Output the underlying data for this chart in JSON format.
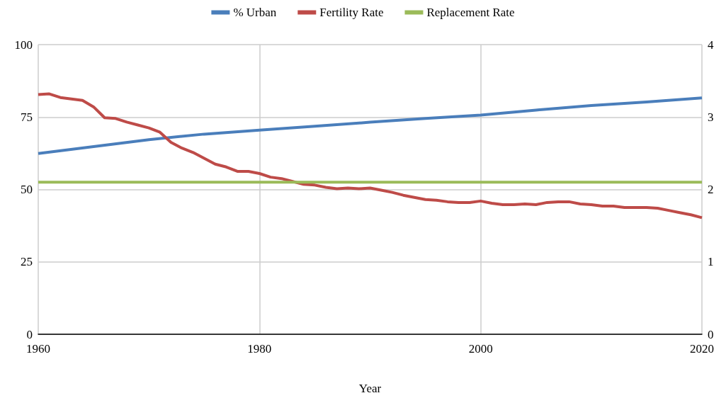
{
  "chart_data": {
    "type": "line",
    "xlabel": "Year",
    "xlim": [
      1960,
      2020
    ],
    "xticks": [
      1960,
      1980,
      2000,
      2020
    ],
    "ylim": [
      0,
      100
    ],
    "yticks": [
      0,
      25,
      50,
      75,
      100
    ],
    "y2lim": [
      0,
      4
    ],
    "y2ticks": [
      0,
      1,
      2,
      3,
      4
    ],
    "grid": true,
    "legend": "top",
    "marker": "none",
    "line_style": "solid",
    "series": [
      {
        "name": "% Urban",
        "color": "#4a7ebb",
        "x": [
          1960,
          1965,
          1970,
          1975,
          1980,
          1985,
          1990,
          1995,
          2000,
          2005,
          2010,
          2015,
          2020
        ],
        "values": [
          62.4,
          64.8,
          67.2,
          69.1,
          70.5,
          71.8,
          73.2,
          74.5,
          75.7,
          77.4,
          79,
          80.2,
          81.6
        ]
      },
      {
        "name": "Fertility Rate",
        "color": "#be4b48",
        "axis": "y2",
        "x": [
          1960,
          1961,
          1962,
          1963,
          1964,
          1965,
          1966,
          1967,
          1968,
          1969,
          1970,
          1971,
          1972,
          1973,
          1974,
          1975,
          1976,
          1977,
          1978,
          1979,
          1980,
          1981,
          1982,
          1983,
          1984,
          1985,
          1986,
          1987,
          1988,
          1989,
          1990,
          1991,
          1992,
          1993,
          1994,
          1995,
          1996,
          1997,
          1998,
          1999,
          2000,
          2001,
          2002,
          2003,
          2004,
          2005,
          2006,
          2007,
          2008,
          2009,
          2010,
          2011,
          2012,
          2013,
          2014,
          2015,
          2016,
          2017,
          2018,
          2019,
          2020
        ],
        "values": [
          3.31,
          3.32,
          3.27,
          3.25,
          3.23,
          3.14,
          2.99,
          2.98,
          2.93,
          2.89,
          2.85,
          2.79,
          2.65,
          2.57,
          2.51,
          2.43,
          2.35,
          2.31,
          2.25,
          2.25,
          2.22,
          2.17,
          2.15,
          2.11,
          2.07,
          2.06,
          2.03,
          2.01,
          2.02,
          2.01,
          2.02,
          1.99,
          1.96,
          1.92,
          1.89,
          1.86,
          1.85,
          1.83,
          1.82,
          1.82,
          1.84,
          1.81,
          1.79,
          1.79,
          1.8,
          1.79,
          1.82,
          1.83,
          1.83,
          1.8,
          1.79,
          1.77,
          1.77,
          1.75,
          1.75,
          1.75,
          1.74,
          1.71,
          1.68,
          1.65,
          1.61
        ]
      },
      {
        "name": "Replacement Rate",
        "color": "#9bbb59",
        "axis": "y2",
        "x": [
          1960,
          2020
        ],
        "values": [
          2.1,
          2.1
        ]
      }
    ]
  }
}
